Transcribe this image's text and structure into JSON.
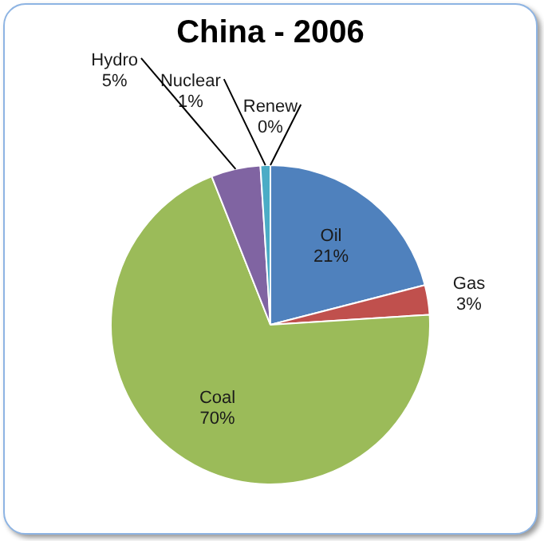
{
  "chart_data": {
    "type": "pie",
    "title": "China - 2006",
    "categories": [
      "Oil",
      "Gas",
      "Coal",
      "Hydro",
      "Nuclear",
      "Renew"
    ],
    "values": [
      21,
      3,
      70,
      5,
      1,
      0
    ],
    "value_labels": [
      "21%",
      "3%",
      "70%",
      "5%",
      "1%",
      "0%"
    ],
    "colors": [
      "#4f81bd",
      "#c0504d",
      "#9bbb59",
      "#8064a2",
      "#4bacc6",
      "#f79646"
    ],
    "legend": false
  }
}
